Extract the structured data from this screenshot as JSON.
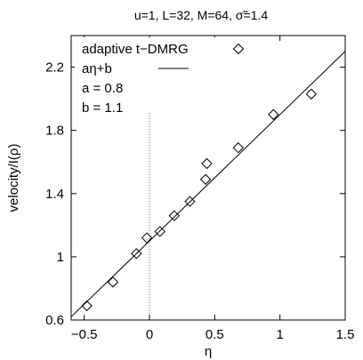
{
  "chart_data": {
    "type": "scatter",
    "title": "u=1, L=32, M=64, σ̃=1.4",
    "xlabel": "η",
    "ylabel": "velocity/I(ρ)",
    "xlim": [
      -0.6,
      1.5
    ],
    "ylim": [
      0.6,
      2.4
    ],
    "xticks": [
      -0.5,
      0,
      0.5,
      1,
      1.5
    ],
    "xtick_labels": [
      "−0.5",
      "0",
      "0.5",
      "1",
      "1.5"
    ],
    "yticks": [
      0.6,
      1.0,
      1.4,
      1.8,
      2.2
    ],
    "ytick_labels": [
      "0.6",
      "1",
      "1.4",
      "1.8",
      "2.2"
    ],
    "grid": false,
    "reference_line_x": 0,
    "legend_position": "top-left",
    "series": [
      {
        "name": "adaptive t−DMRG",
        "marker": "diamond",
        "x": [
          -0.48,
          -0.28,
          -0.1,
          -0.02,
          0.08,
          0.19,
          0.31,
          0.43,
          0.44,
          0.68,
          0.95,
          1.24
        ],
        "y": [
          0.69,
          0.84,
          1.02,
          1.12,
          1.16,
          1.26,
          1.35,
          1.49,
          1.59,
          1.69,
          1.9,
          2.03
        ]
      },
      {
        "name": "aη+b",
        "type": "line",
        "a": 0.8,
        "b": 1.1
      }
    ],
    "annotations": [
      "a = 0.8",
      "b = 1.1"
    ]
  }
}
